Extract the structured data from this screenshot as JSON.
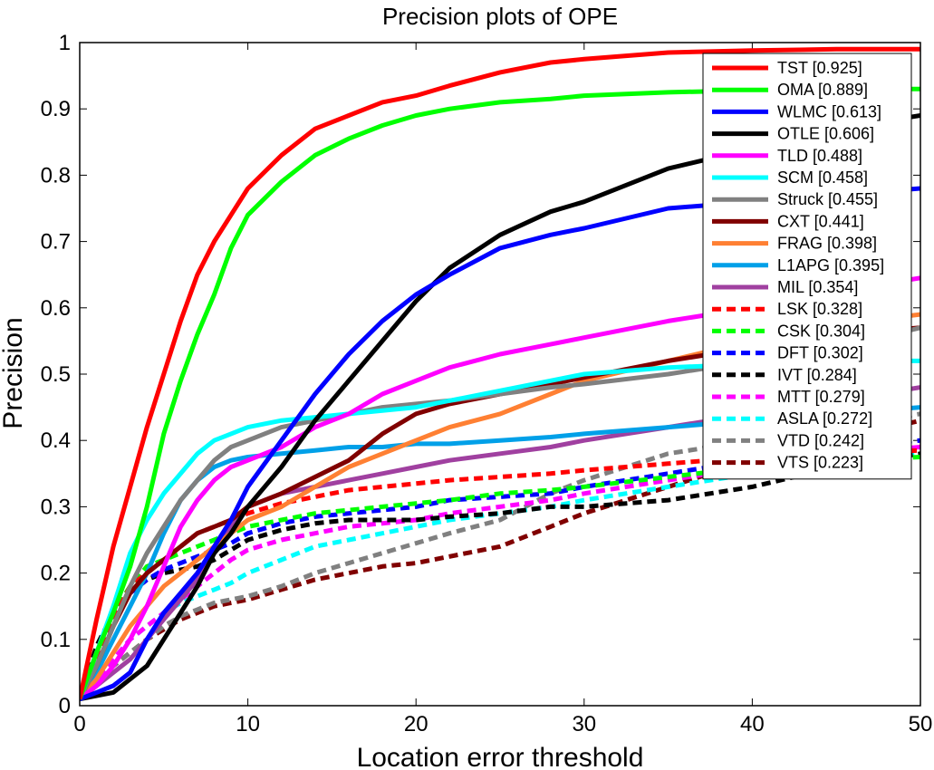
{
  "chart_data": {
    "type": "line",
    "title": "Precision plots of OPE",
    "xlabel": "Location error threshold",
    "ylabel": "Precision",
    "xlim": [
      0,
      50
    ],
    "ylim": [
      0,
      1
    ],
    "xticks": [
      "0",
      "10",
      "20",
      "30",
      "40",
      "50"
    ],
    "yticks": [
      "0",
      "0.1",
      "0.2",
      "0.3",
      "0.4",
      "0.5",
      "0.6",
      "0.7",
      "0.8",
      "0.9",
      "1"
    ],
    "grid": false,
    "legend_position": "top-right",
    "x": [
      0,
      1,
      2,
      3,
      4,
      5,
      6,
      7,
      8,
      9,
      10,
      12,
      14,
      16,
      18,
      20,
      22,
      25,
      28,
      30,
      35,
      40,
      45,
      50
    ],
    "series": [
      {
        "name": "TST [0.925]",
        "color": "#ff0000",
        "dash": "solid",
        "values": [
          0.01,
          0.13,
          0.24,
          0.33,
          0.42,
          0.5,
          0.58,
          0.65,
          0.7,
          0.74,
          0.78,
          0.83,
          0.87,
          0.89,
          0.91,
          0.92,
          0.935,
          0.955,
          0.97,
          0.975,
          0.985,
          0.988,
          0.99,
          0.99
        ]
      },
      {
        "name": "OMA [0.889]",
        "color": "#00ff00",
        "dash": "solid",
        "values": [
          0.01,
          0.08,
          0.14,
          0.21,
          0.3,
          0.41,
          0.49,
          0.56,
          0.62,
          0.69,
          0.74,
          0.79,
          0.83,
          0.855,
          0.875,
          0.89,
          0.9,
          0.91,
          0.915,
          0.92,
          0.925,
          0.928,
          0.93,
          0.93
        ]
      },
      {
        "name": "WLMC [0.613]",
        "color": "#0000ff",
        "dash": "solid",
        "values": [
          0.01,
          0.02,
          0.03,
          0.05,
          0.1,
          0.14,
          0.17,
          0.2,
          0.24,
          0.28,
          0.33,
          0.4,
          0.47,
          0.53,
          0.58,
          0.62,
          0.65,
          0.69,
          0.71,
          0.72,
          0.75,
          0.76,
          0.77,
          0.78
        ]
      },
      {
        "name": "OTLE [0.606]",
        "color": "#000000",
        "dash": "solid",
        "values": [
          0.01,
          0.015,
          0.02,
          0.04,
          0.06,
          0.1,
          0.14,
          0.18,
          0.23,
          0.26,
          0.3,
          0.36,
          0.43,
          0.49,
          0.55,
          0.61,
          0.66,
          0.71,
          0.745,
          0.76,
          0.81,
          0.84,
          0.87,
          0.89
        ]
      },
      {
        "name": "TLD [0.488]",
        "color": "#ff00ff",
        "dash": "solid",
        "values": [
          0.01,
          0.03,
          0.06,
          0.1,
          0.15,
          0.21,
          0.27,
          0.31,
          0.34,
          0.36,
          0.37,
          0.39,
          0.42,
          0.44,
          0.47,
          0.49,
          0.51,
          0.53,
          0.545,
          0.555,
          0.58,
          0.6,
          0.625,
          0.645
        ]
      },
      {
        "name": "SCM [0.458]",
        "color": "#00ffff",
        "dash": "solid",
        "values": [
          0.01,
          0.08,
          0.15,
          0.23,
          0.28,
          0.32,
          0.35,
          0.38,
          0.4,
          0.41,
          0.42,
          0.43,
          0.435,
          0.44,
          0.445,
          0.45,
          0.46,
          0.475,
          0.49,
          0.5,
          0.51,
          0.515,
          0.52,
          0.52
        ]
      },
      {
        "name": "Struck [0.455]",
        "color": "#808080",
        "dash": "solid",
        "values": [
          0.01,
          0.06,
          0.12,
          0.18,
          0.23,
          0.27,
          0.31,
          0.34,
          0.37,
          0.39,
          0.4,
          0.42,
          0.43,
          0.44,
          0.45,
          0.455,
          0.46,
          0.47,
          0.48,
          0.485,
          0.5,
          0.52,
          0.54,
          0.57
        ]
      },
      {
        "name": "CXT [0.441]",
        "color": "#800000",
        "dash": "solid",
        "values": [
          0.01,
          0.06,
          0.12,
          0.17,
          0.2,
          0.22,
          0.24,
          0.26,
          0.27,
          0.28,
          0.3,
          0.32,
          0.345,
          0.37,
          0.41,
          0.44,
          0.455,
          0.47,
          0.485,
          0.495,
          0.52,
          0.54,
          0.56,
          0.57
        ]
      },
      {
        "name": "FRAG [0.398]",
        "color": "#ff8033",
        "dash": "solid",
        "values": [
          0.01,
          0.04,
          0.08,
          0.12,
          0.15,
          0.18,
          0.2,
          0.22,
          0.24,
          0.26,
          0.28,
          0.3,
          0.33,
          0.36,
          0.38,
          0.4,
          0.42,
          0.44,
          0.47,
          0.49,
          0.52,
          0.55,
          0.575,
          0.59
        ]
      },
      {
        "name": "L1APG [0.395]",
        "color": "#00a0e8",
        "dash": "solid",
        "values": [
          0.01,
          0.05,
          0.1,
          0.15,
          0.2,
          0.26,
          0.31,
          0.34,
          0.36,
          0.37,
          0.375,
          0.38,
          0.385,
          0.39,
          0.39,
          0.395,
          0.395,
          0.4,
          0.405,
          0.41,
          0.42,
          0.43,
          0.44,
          0.45
        ]
      },
      {
        "name": "MIL [0.354]",
        "color": "#a040a0",
        "dash": "solid",
        "values": [
          0.01,
          0.03,
          0.05,
          0.07,
          0.1,
          0.13,
          0.16,
          0.19,
          0.23,
          0.27,
          0.3,
          0.32,
          0.33,
          0.34,
          0.35,
          0.36,
          0.37,
          0.38,
          0.39,
          0.4,
          0.42,
          0.44,
          0.46,
          0.48
        ]
      },
      {
        "name": "LSK [0.328]",
        "color": "#ff0000",
        "dash": "dashed",
        "values": [
          0.01,
          0.07,
          0.13,
          0.18,
          0.2,
          0.22,
          0.24,
          0.26,
          0.27,
          0.28,
          0.29,
          0.305,
          0.315,
          0.325,
          0.33,
          0.335,
          0.34,
          0.345,
          0.35,
          0.355,
          0.365,
          0.375,
          0.38,
          0.385
        ]
      },
      {
        "name": "CSK [0.304]",
        "color": "#00ff00",
        "dash": "dashed",
        "values": [
          0.01,
          0.08,
          0.14,
          0.18,
          0.21,
          0.22,
          0.23,
          0.24,
          0.25,
          0.26,
          0.27,
          0.28,
          0.29,
          0.295,
          0.3,
          0.305,
          0.31,
          0.32,
          0.325,
          0.33,
          0.345,
          0.36,
          0.37,
          0.375
        ]
      },
      {
        "name": "DFT [0.302]",
        "color": "#0000ff",
        "dash": "dashed",
        "values": [
          0.01,
          0.08,
          0.13,
          0.17,
          0.19,
          0.205,
          0.215,
          0.225,
          0.235,
          0.245,
          0.26,
          0.275,
          0.285,
          0.29,
          0.295,
          0.3,
          0.31,
          0.315,
          0.32,
          0.33,
          0.35,
          0.37,
          0.39,
          0.4
        ]
      },
      {
        "name": "IVT [0.284]",
        "color": "#000000",
        "dash": "dashed",
        "values": [
          0.01,
          0.09,
          0.14,
          0.17,
          0.19,
          0.2,
          0.205,
          0.21,
          0.22,
          0.235,
          0.25,
          0.265,
          0.275,
          0.28,
          0.28,
          0.28,
          0.285,
          0.29,
          0.3,
          0.3,
          0.31,
          0.33,
          0.36,
          0.38
        ]
      },
      {
        "name": "MTT [0.279]",
        "color": "#ff00ff",
        "dash": "dashed",
        "values": [
          0.01,
          0.04,
          0.07,
          0.1,
          0.12,
          0.14,
          0.16,
          0.18,
          0.2,
          0.22,
          0.235,
          0.25,
          0.26,
          0.27,
          0.275,
          0.28,
          0.29,
          0.3,
          0.31,
          0.32,
          0.34,
          0.36,
          0.38,
          0.39
        ]
      },
      {
        "name": "ASLA [0.272]",
        "color": "#00ffff",
        "dash": "dashed",
        "values": [
          0.01,
          0.04,
          0.07,
          0.1,
          0.12,
          0.14,
          0.155,
          0.165,
          0.175,
          0.185,
          0.2,
          0.22,
          0.24,
          0.25,
          0.26,
          0.27,
          0.28,
          0.29,
          0.3,
          0.31,
          0.33,
          0.35,
          0.37,
          0.38
        ]
      },
      {
        "name": "VTD [0.242]",
        "color": "#808080",
        "dash": "dashed",
        "values": [
          0.01,
          0.03,
          0.06,
          0.08,
          0.1,
          0.12,
          0.135,
          0.145,
          0.155,
          0.16,
          0.165,
          0.18,
          0.2,
          0.215,
          0.23,
          0.245,
          0.26,
          0.28,
          0.32,
          0.34,
          0.38,
          0.4,
          0.42,
          0.44
        ]
      },
      {
        "name": "VTS [0.223]",
        "color": "#800000",
        "dash": "dashed",
        "values": [
          0.01,
          0.04,
          0.06,
          0.08,
          0.1,
          0.115,
          0.13,
          0.14,
          0.15,
          0.155,
          0.16,
          0.175,
          0.19,
          0.2,
          0.21,
          0.215,
          0.225,
          0.24,
          0.27,
          0.29,
          0.33,
          0.37,
          0.4,
          0.43
        ]
      }
    ]
  }
}
